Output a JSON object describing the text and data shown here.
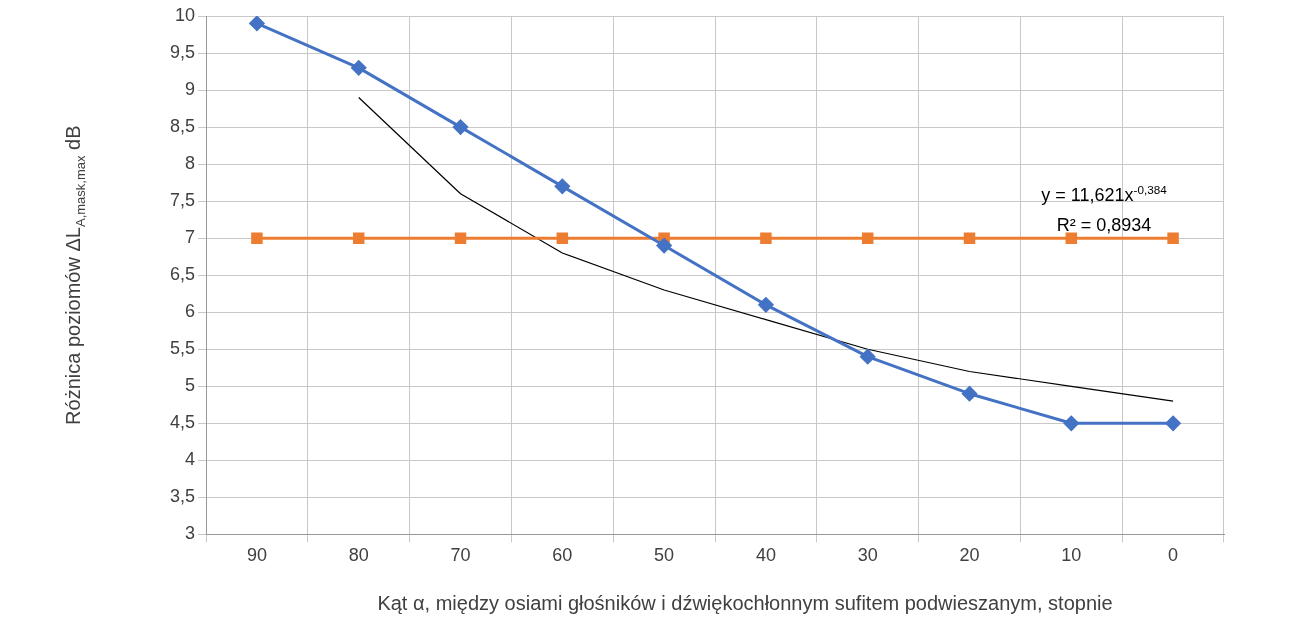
{
  "chart_data": {
    "type": "line",
    "xlabel": "Kąt α, między osiami głośników i dźwiękochłonnym sufitem podwieszanym, stopnie",
    "ylabel": "Różnica poziomów ΔL$_{A,mask,max}$ dB",
    "categories": [
      "90",
      "80",
      "70",
      "60",
      "50",
      "40",
      "30",
      "20",
      "10",
      "0"
    ],
    "series": [
      {
        "color": "#4472c4",
        "marker": "diamond",
        "values": [
          9.9,
          9.3,
          8.5,
          7.7,
          6.9,
          6.1,
          5.4,
          4.9,
          4.5,
          4.5
        ]
      },
      {
        "color": "#ed7d31",
        "marker": "square",
        "values": [
          7,
          7,
          7,
          7,
          7,
          7,
          7,
          7,
          7,
          7
        ]
      },
      {
        "color": "#000000",
        "marker": "none",
        "values": [
          null,
          8.9,
          7.6,
          6.8,
          6.3,
          5.9,
          5.5,
          5.2,
          5.0,
          4.8
        ]
      }
    ],
    "ylim": [
      3,
      10
    ],
    "yticks": [
      3,
      {
        "value": 3.5,
        "label": "3,5"
      },
      4,
      {
        "value": 4.5,
        "label": "4,5"
      },
      5,
      {
        "value": 5.5,
        "label": "5,5"
      },
      6,
      {
        "value": 6.5,
        "label": "6,5"
      },
      7,
      {
        "value": 7.5,
        "label": "7,5"
      },
      8,
      {
        "value": 8.5,
        "label": "8,5"
      },
      9,
      {
        "value": 9.5,
        "label": "9,5"
      },
      10
    ],
    "grid": true,
    "annotations": [
      "y = 11,621x$^{-0,384}$",
      "R² = 0,8934"
    ]
  }
}
